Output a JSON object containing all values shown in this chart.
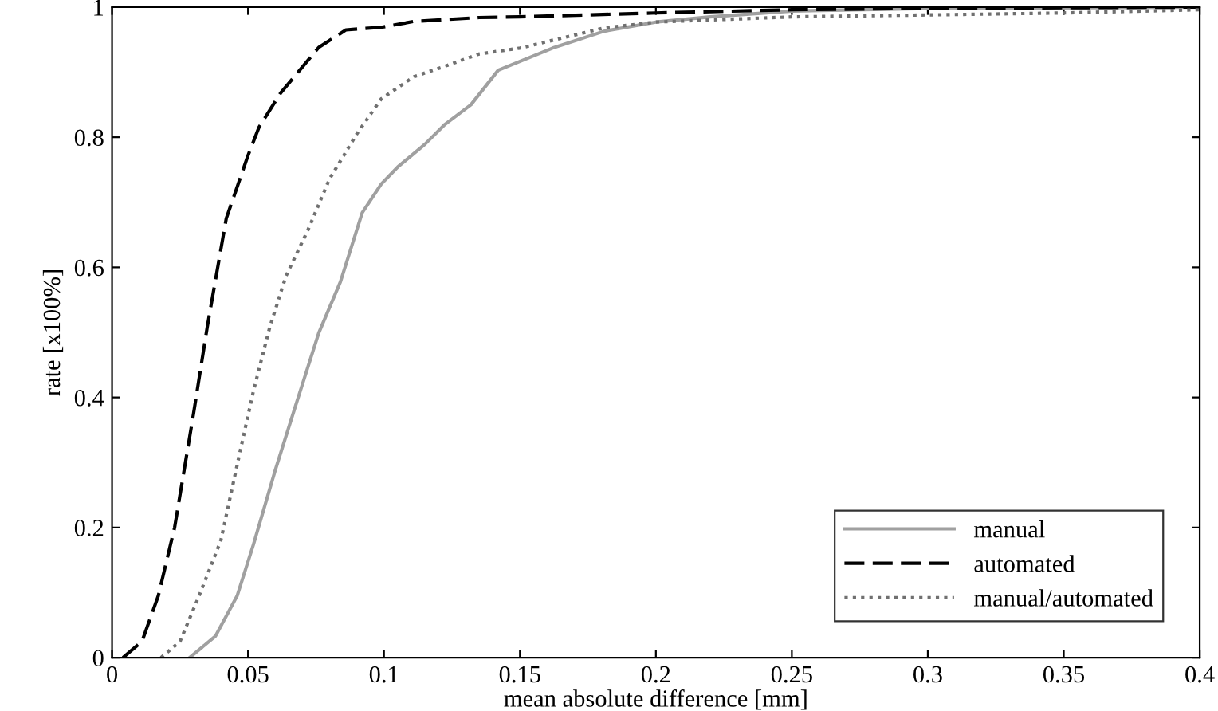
{
  "chart_data": {
    "type": "line",
    "xlabel": "mean absolute difference [mm]",
    "ylabel": "rate [x100%]",
    "xlim": [
      0,
      0.4
    ],
    "ylim": [
      0,
      1
    ],
    "xticks": [
      0,
      0.05,
      0.1,
      0.15,
      0.2,
      0.25,
      0.3,
      0.35,
      0.4
    ],
    "yticks": [
      0,
      0.2,
      0.4,
      0.6,
      0.8,
      1
    ],
    "grid": false,
    "legend": "bottom right",
    "marker": "none",
    "series": [
      {
        "name": "manual",
        "color": "#a0a0a0",
        "line_style": "solid",
        "x": [
          0.0285,
          0.038,
          0.046,
          0.052,
          0.06,
          0.068,
          0.076,
          0.084,
          0.092,
          0.099,
          0.105,
          0.115,
          0.1225,
          0.132,
          0.142,
          0.162,
          0.181,
          0.2,
          0.22,
          0.25,
          0.3,
          0.4
        ],
        "values": [
          0,
          0.033,
          0.095,
          0.174,
          0.288,
          0.394,
          0.499,
          0.578,
          0.684,
          0.728,
          0.754,
          0.789,
          0.82,
          0.85,
          0.903,
          0.937,
          0.963,
          0.977,
          0.985,
          0.994,
          0.998,
          1.0
        ]
      },
      {
        "name": "automated",
        "color": "#000000",
        "line_style": "dashed",
        "x": [
          0.004,
          0.011,
          0.017,
          0.023,
          0.03,
          0.035,
          0.042,
          0.05,
          0.054,
          0.062,
          0.076,
          0.086,
          0.099,
          0.111,
          0.135,
          0.15,
          0.2,
          0.25,
          0.3,
          0.4
        ],
        "values": [
          0,
          0.025,
          0.095,
          0.2,
          0.376,
          0.508,
          0.675,
          0.772,
          0.815,
          0.868,
          0.938,
          0.965,
          0.969,
          0.978,
          0.984,
          0.985,
          0.991,
          0.996,
          0.998,
          1.0
        ]
      },
      {
        "name": "manual/automated",
        "color": "#707070",
        "line_style": "dotted",
        "x": [
          0.018,
          0.025,
          0.032,
          0.04,
          0.046,
          0.052,
          0.058,
          0.064,
          0.072,
          0.08,
          0.09,
          0.099,
          0.111,
          0.123,
          0.135,
          0.15,
          0.181,
          0.2,
          0.25,
          0.3,
          0.35,
          0.4
        ],
        "values": [
          0,
          0.025,
          0.095,
          0.18,
          0.296,
          0.41,
          0.508,
          0.587,
          0.657,
          0.736,
          0.805,
          0.859,
          0.893,
          0.91,
          0.928,
          0.937,
          0.968,
          0.977,
          0.985,
          0.988,
          0.991,
          0.996
        ]
      }
    ]
  }
}
